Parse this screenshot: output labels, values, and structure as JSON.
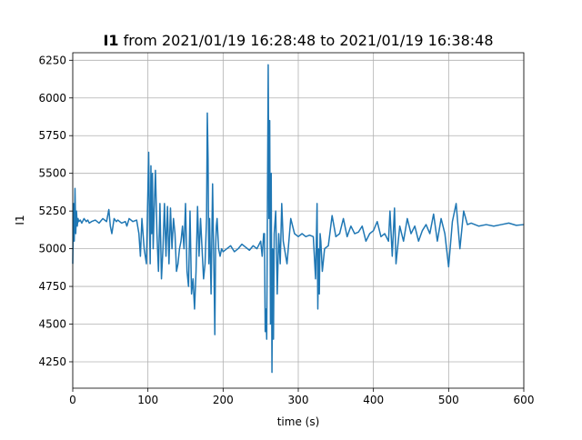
{
  "chart_data": {
    "type": "line",
    "title_bold": "I1",
    "title_rest": " from 2021/01/19 16:28:48 to 2021/01/19 16:38:48",
    "xlabel": "time (s)",
    "ylabel": "I1",
    "xlim": [
      0,
      600
    ],
    "ylim": [
      4075,
      6300
    ],
    "grid": true,
    "line_color": "#1f77b4",
    "x_ticks": [
      0,
      100,
      200,
      300,
      400,
      500,
      600
    ],
    "y_ticks": [
      4250,
      4500,
      4750,
      5000,
      5250,
      5500,
      5750,
      6000,
      6250
    ],
    "series": [
      {
        "x": [
          0,
          1,
          2,
          3,
          4,
          5,
          6,
          7,
          8,
          10,
          12,
          15,
          18,
          20,
          22,
          25,
          30,
          35,
          40,
          45,
          48,
          50,
          52,
          55,
          58,
          60,
          65,
          70,
          72,
          75,
          80,
          85,
          88,
          90,
          92,
          95,
          98,
          100,
          101,
          102,
          103,
          104,
          105,
          106,
          107,
          108,
          110,
          112,
          114,
          116,
          118,
          120,
          122,
          124,
          126,
          128,
          130,
          132,
          134,
          136,
          138,
          140,
          142,
          144,
          146,
          148,
          150,
          152,
          154,
          156,
          158,
          160,
          162,
          164,
          166,
          168,
          170,
          172,
          174,
          176,
          178,
          179,
          180,
          181,
          182,
          184,
          186,
          188,
          189,
          190,
          191,
          192,
          194,
          196,
          198,
          200,
          205,
          210,
          215,
          220,
          225,
          230,
          235,
          240,
          245,
          250,
          252,
          254,
          255,
          256,
          257,
          258,
          259,
          260,
          261,
          262,
          263,
          264,
          265,
          266,
          267,
          268,
          270,
          272,
          274,
          276,
          278,
          280,
          285,
          290,
          295,
          300,
          305,
          310,
          315,
          320,
          323,
          325,
          326,
          327,
          328,
          329,
          330,
          332,
          335,
          340,
          345,
          350,
          355,
          360,
          365,
          370,
          375,
          380,
          385,
          390,
          395,
          400,
          405,
          410,
          415,
          420,
          422,
          425,
          428,
          430,
          435,
          440,
          445,
          450,
          455,
          460,
          465,
          470,
          475,
          480,
          485,
          490,
          495,
          500,
          505,
          510,
          515,
          520,
          525,
          530,
          540,
          550,
          560,
          570,
          580,
          590,
          600
        ],
        "y": [
          4900,
          5300,
          5050,
          5400,
          5100,
          5250,
          5150,
          5200,
          5180,
          5190,
          5170,
          5200,
          5180,
          5190,
          5170,
          5180,
          5190,
          5170,
          5200,
          5180,
          5260,
          5150,
          5100,
          5200,
          5180,
          5190,
          5170,
          5180,
          5150,
          5200,
          5180,
          5190,
          5100,
          4950,
          5200,
          5000,
          4900,
          5400,
          5640,
          5200,
          4900,
          5550,
          5100,
          5500,
          5000,
          5200,
          5520,
          5100,
          4850,
          5300,
          4800,
          5000,
          5300,
          4950,
          5280,
          4900,
          5270,
          5000,
          5200,
          5100,
          4850,
          4900,
          5000,
          5050,
          5150,
          5000,
          5300,
          4850,
          4750,
          5250,
          4700,
          4800,
          4600,
          4850,
          5280,
          4950,
          5200,
          5000,
          4800,
          4900,
          5200,
          5900,
          5600,
          4900,
          5200,
          4700,
          5430,
          4800,
          4430,
          5000,
          5150,
          5200,
          5000,
          4950,
          5000,
          4980,
          5000,
          5020,
          4980,
          5000,
          5030,
          5010,
          4990,
          5020,
          5000,
          5050,
          4950,
          5100,
          5100,
          4450,
          4600,
          4400,
          5300,
          6220,
          5200,
          5850,
          4500,
          5500,
          4180,
          5000,
          4400,
          5100,
          5250,
          4700,
          5100,
          4900,
          5300,
          5050,
          4900,
          5200,
          5100,
          5080,
          5100,
          5080,
          5090,
          5080,
          4800,
          5300,
          4600,
          5000,
          4700,
          5100,
          5050,
          4850,
          5000,
          5020,
          5220,
          5080,
          5100,
          5200,
          5080,
          5150,
          5100,
          5110,
          5150,
          5050,
          5100,
          5120,
          5180,
          5080,
          5100,
          5050,
          5250,
          4950,
          5270,
          4900,
          5150,
          5050,
          5200,
          5100,
          5150,
          5050,
          5120,
          5160,
          5100,
          5230,
          5050,
          5200,
          5100,
          4880,
          5180,
          5300,
          5000,
          5250,
          5160,
          5170,
          5150,
          5160,
          5150,
          5160,
          5170,
          5155,
          5160
        ]
      }
    ]
  }
}
